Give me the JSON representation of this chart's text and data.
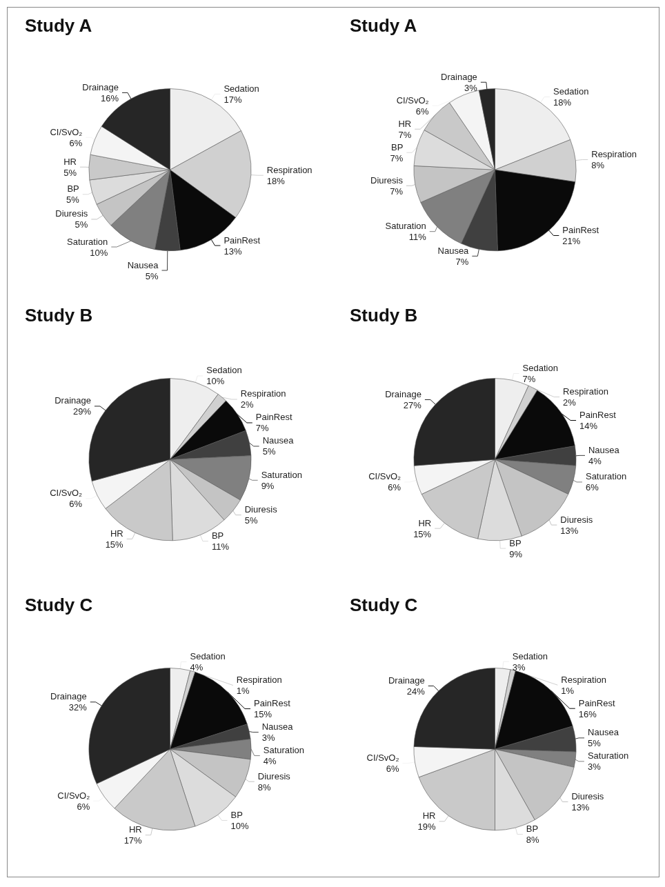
{
  "chart_data": [
    {
      "type": "pie",
      "title": "Study A",
      "categories": [
        "Sedation",
        "Respiration",
        "PainRest",
        "Nausea",
        "Saturation",
        "Diuresis",
        "BP",
        "HR",
        "CI/SvO₂",
        "Drainage"
      ],
      "values": [
        17,
        18,
        13,
        5,
        10,
        5,
        5,
        5,
        6,
        16
      ],
      "value_labels": [
        "17%",
        "18%",
        "13%",
        "5%",
        "10%",
        "5%",
        "5%",
        "5%",
        "6%",
        "16%"
      ],
      "colors": [
        "#eeeeee",
        "#d0d0d0",
        "#0a0a0a",
        "#404040",
        "#808080",
        "#c4c4c4",
        "#dcdcdc",
        "#c9c9c9",
        "#f4f4f4",
        "#262626"
      ]
    },
    {
      "type": "pie",
      "title": "Study A",
      "categories": [
        "Sedation",
        "Respiration",
        "PainRest",
        "Nausea",
        "Saturation",
        "Diuresis",
        "BP",
        "HR",
        "CI/SvO₂",
        "Drainage"
      ],
      "values": [
        18,
        8,
        21,
        7,
        11,
        7,
        7,
        7,
        6,
        3
      ],
      "value_labels": [
        "18%",
        "8%",
        "21%",
        "7%",
        "11%",
        "7%",
        "7%",
        "7%",
        "6%",
        "3%"
      ],
      "colors": [
        "#eeeeee",
        "#d0d0d0",
        "#0a0a0a",
        "#404040",
        "#808080",
        "#c4c4c4",
        "#dcdcdc",
        "#c9c9c9",
        "#f4f4f4",
        "#262626"
      ]
    },
    {
      "type": "pie",
      "title": "Study B",
      "categories": [
        "Sedation",
        "Respiration",
        "PainRest",
        "Nausea",
        "Saturation",
        "Diuresis",
        "BP",
        "HR",
        "CI/SvO₂",
        "Drainage"
      ],
      "values": [
        10,
        2,
        7,
        5,
        9,
        5,
        11,
        15,
        6,
        29
      ],
      "value_labels": [
        "10%",
        "2%",
        "7%",
        "5%",
        "9%",
        "5%",
        "11%",
        "15%",
        "6%",
        "29%"
      ],
      "colors": [
        "#eeeeee",
        "#d0d0d0",
        "#0a0a0a",
        "#404040",
        "#808080",
        "#c4c4c4",
        "#dcdcdc",
        "#c9c9c9",
        "#f4f4f4",
        "#262626"
      ]
    },
    {
      "type": "pie",
      "title": "Study B",
      "categories": [
        "Sedation",
        "Respiration",
        "PainRest",
        "Nausea",
        "Saturation",
        "Diuresis",
        "BP",
        "HR",
        "CI/SvO₂",
        "Drainage"
      ],
      "values": [
        7,
        2,
        14,
        4,
        6,
        13,
        9,
        15,
        6,
        27
      ],
      "value_labels": [
        "7%",
        "2%",
        "14%",
        "4%",
        "6%",
        "13%",
        "9%",
        "15%",
        "6%",
        "27%"
      ],
      "colors": [
        "#eeeeee",
        "#d0d0d0",
        "#0a0a0a",
        "#404040",
        "#808080",
        "#c4c4c4",
        "#dcdcdc",
        "#c9c9c9",
        "#f4f4f4",
        "#262626"
      ]
    },
    {
      "type": "pie",
      "title": "Study C",
      "categories": [
        "Sedation",
        "Respiration",
        "PainRest",
        "Nausea",
        "Saturation",
        "Diuresis",
        "BP",
        "HR",
        "CI/SvO₂",
        "Drainage"
      ],
      "values": [
        4,
        1,
        15,
        3,
        4,
        8,
        10,
        17,
        6,
        32
      ],
      "value_labels": [
        "4%",
        "1%",
        "15%",
        "3%",
        "4%",
        "8%",
        "10%",
        "17%",
        "6%",
        "32%"
      ],
      "colors": [
        "#eeeeee",
        "#d0d0d0",
        "#0a0a0a",
        "#404040",
        "#808080",
        "#c4c4c4",
        "#dcdcdc",
        "#c9c9c9",
        "#f4f4f4",
        "#262626"
      ]
    },
    {
      "type": "pie",
      "title": "Study C",
      "categories": [
        "Sedation",
        "Respiration",
        "PainRest",
        "Nausea",
        "Saturation",
        "Diuresis",
        "BP",
        "HR",
        "CI/SvO₂",
        "Drainage"
      ],
      "values": [
        3,
        1,
        16,
        5,
        3,
        13,
        8,
        19,
        6,
        24
      ],
      "value_labels": [
        "3%",
        "1%",
        "16%",
        "5%",
        "3%",
        "13%",
        "8%",
        "19%",
        "6%",
        "24%"
      ],
      "colors": [
        "#eeeeee",
        "#d0d0d0",
        "#0a0a0a",
        "#404040",
        "#808080",
        "#c4c4c4",
        "#dcdcdc",
        "#c9c9c9",
        "#f4f4f4",
        "#262626"
      ]
    }
  ]
}
